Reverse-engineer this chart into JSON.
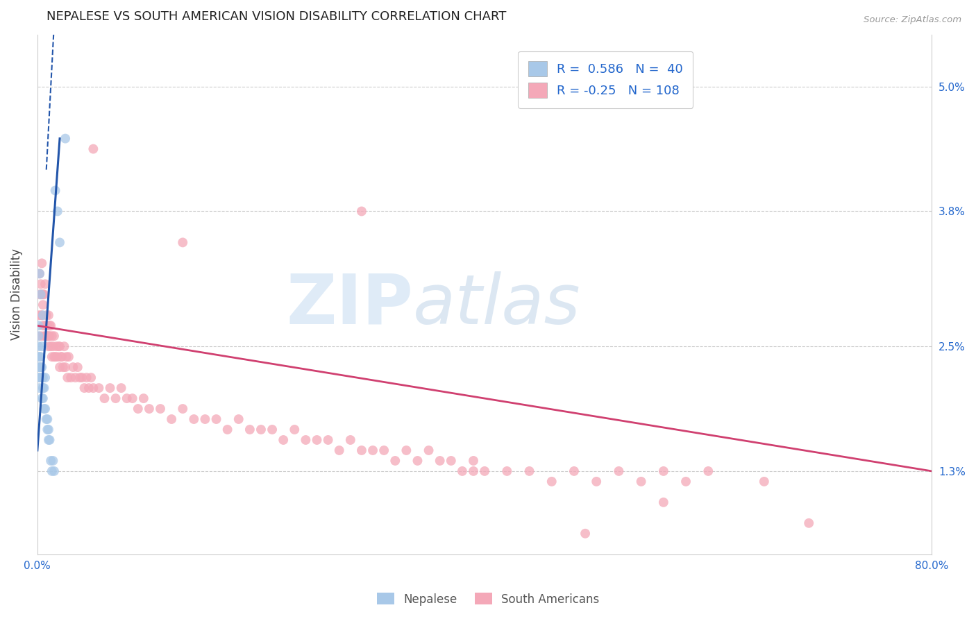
{
  "title": "NEPALESE VS SOUTH AMERICAN VISION DISABILITY CORRELATION CHART",
  "source": "Source: ZipAtlas.com",
  "ylabel": "Vision Disability",
  "xlim": [
    0.0,
    0.8
  ],
  "ylim": [
    0.005,
    0.055
  ],
  "yticks": [
    0.013,
    0.025,
    0.038,
    0.05
  ],
  "yticklabels": [
    "1.3%",
    "2.5%",
    "3.8%",
    "5.0%"
  ],
  "nepalese_R": 0.586,
  "nepalese_N": 40,
  "southam_R": -0.25,
  "southam_N": 108,
  "nepalese_color": "#a8c8e8",
  "nepalese_line_color": "#2255aa",
  "southam_color": "#f4a8b8",
  "southam_line_color": "#d04070",
  "legend_text_color": "#2266cc",
  "background_color": "#ffffff",
  "grid_color": "#cccccc",
  "nepalese_x": [
    0.001,
    0.001,
    0.001,
    0.001,
    0.001,
    0.001,
    0.002,
    0.002,
    0.002,
    0.002,
    0.002,
    0.003,
    0.003,
    0.003,
    0.003,
    0.004,
    0.004,
    0.004,
    0.005,
    0.005,
    0.005,
    0.005,
    0.006,
    0.006,
    0.007,
    0.007,
    0.008,
    0.009,
    0.009,
    0.01,
    0.01,
    0.011,
    0.012,
    0.013,
    0.014,
    0.015,
    0.016,
    0.018,
    0.02,
    0.025
  ],
  "nepalese_y": [
    0.022,
    0.023,
    0.024,
    0.025,
    0.026,
    0.027,
    0.021,
    0.022,
    0.023,
    0.024,
    0.032,
    0.022,
    0.023,
    0.024,
    0.03,
    0.02,
    0.023,
    0.025,
    0.02,
    0.021,
    0.022,
    0.028,
    0.019,
    0.021,
    0.019,
    0.022,
    0.018,
    0.017,
    0.018,
    0.016,
    0.017,
    0.016,
    0.014,
    0.013,
    0.014,
    0.013,
    0.04,
    0.038,
    0.035,
    0.045
  ],
  "southam_x": [
    0.001,
    0.002,
    0.002,
    0.003,
    0.003,
    0.003,
    0.004,
    0.004,
    0.004,
    0.005,
    0.005,
    0.005,
    0.006,
    0.006,
    0.007,
    0.007,
    0.008,
    0.008,
    0.009,
    0.009,
    0.01,
    0.01,
    0.01,
    0.011,
    0.011,
    0.012,
    0.012,
    0.013,
    0.013,
    0.014,
    0.015,
    0.015,
    0.016,
    0.017,
    0.018,
    0.019,
    0.02,
    0.02,
    0.021,
    0.022,
    0.023,
    0.024,
    0.025,
    0.026,
    0.027,
    0.028,
    0.03,
    0.032,
    0.034,
    0.036,
    0.038,
    0.04,
    0.042,
    0.044,
    0.046,
    0.048,
    0.05,
    0.055,
    0.06,
    0.065,
    0.07,
    0.075,
    0.08,
    0.085,
    0.09,
    0.095,
    0.1,
    0.11,
    0.12,
    0.13,
    0.14,
    0.15,
    0.16,
    0.17,
    0.18,
    0.19,
    0.2,
    0.21,
    0.22,
    0.23,
    0.24,
    0.25,
    0.26,
    0.27,
    0.28,
    0.29,
    0.3,
    0.31,
    0.32,
    0.33,
    0.34,
    0.35,
    0.36,
    0.37,
    0.38,
    0.39,
    0.4,
    0.42,
    0.44,
    0.46,
    0.48,
    0.5,
    0.52,
    0.54,
    0.56,
    0.58,
    0.6,
    0.65
  ],
  "southam_y": [
    0.028,
    0.03,
    0.032,
    0.028,
    0.031,
    0.026,
    0.03,
    0.028,
    0.033,
    0.027,
    0.03,
    0.029,
    0.026,
    0.03,
    0.027,
    0.031,
    0.026,
    0.028,
    0.026,
    0.027,
    0.026,
    0.028,
    0.025,
    0.027,
    0.026,
    0.025,
    0.027,
    0.024,
    0.026,
    0.025,
    0.024,
    0.026,
    0.024,
    0.025,
    0.024,
    0.025,
    0.023,
    0.025,
    0.024,
    0.024,
    0.023,
    0.025,
    0.023,
    0.024,
    0.022,
    0.024,
    0.022,
    0.023,
    0.022,
    0.023,
    0.022,
    0.022,
    0.021,
    0.022,
    0.021,
    0.022,
    0.021,
    0.021,
    0.02,
    0.021,
    0.02,
    0.021,
    0.02,
    0.02,
    0.019,
    0.02,
    0.019,
    0.019,
    0.018,
    0.019,
    0.018,
    0.018,
    0.018,
    0.017,
    0.018,
    0.017,
    0.017,
    0.017,
    0.016,
    0.017,
    0.016,
    0.016,
    0.016,
    0.015,
    0.016,
    0.015,
    0.015,
    0.015,
    0.014,
    0.015,
    0.014,
    0.015,
    0.014,
    0.014,
    0.013,
    0.014,
    0.013,
    0.013,
    0.013,
    0.012,
    0.013,
    0.012,
    0.013,
    0.012,
    0.013,
    0.012,
    0.013,
    0.012
  ],
  "southam_extra_x": [
    0.05,
    0.13,
    0.29,
    0.56,
    0.69,
    0.39,
    0.49
  ],
  "southam_extra_y": [
    0.044,
    0.035,
    0.038,
    0.01,
    0.008,
    0.013,
    0.007
  ],
  "nepalese_line_x0": 0.0,
  "nepalese_line_y0": 0.015,
  "nepalese_line_x1": 0.02,
  "nepalese_line_y1": 0.045,
  "nepalese_line_solid_x0": 0.001,
  "nepalese_line_solid_x1": 0.02,
  "nepalese_line_dash_x0": 0.0,
  "nepalese_line_dash_x1": 0.001,
  "southam_line_x0": 0.0,
  "southam_line_y0": 0.027,
  "southam_line_x1": 0.8,
  "southam_line_y1": 0.013
}
